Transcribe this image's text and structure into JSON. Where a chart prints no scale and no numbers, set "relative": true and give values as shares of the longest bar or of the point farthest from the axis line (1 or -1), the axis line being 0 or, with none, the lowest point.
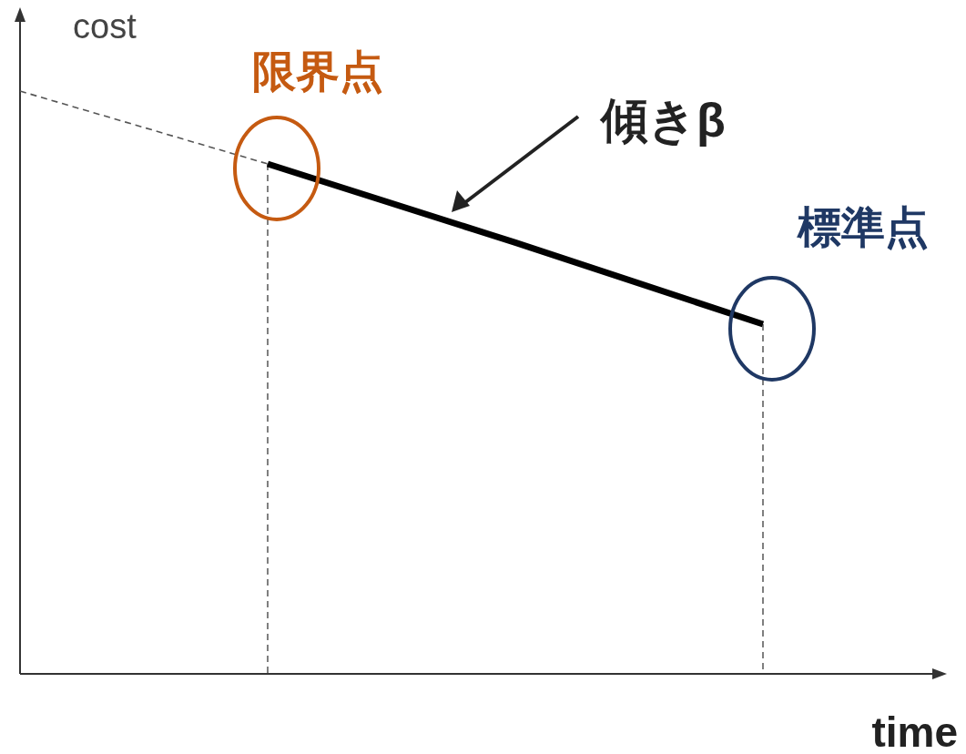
{
  "chart_data": {
    "type": "line",
    "relative": true,
    "xlabel": "time",
    "ylabel": "cost",
    "categories": [
      null,
      null,
      null,
      null
    ],
    "series": [
      {
        "color": "#555555",
        "line_style": "dashed",
        "values": [
          1,
          0.875,
          null,
          null
        ]
      },
      {
        "color": "#000000",
        "line_style": "solid",
        "values": [
          null,
          0.875,
          0.74,
          0.6
        ]
      }
    ],
    "annotations": [
      "限界点",
      "傾きβ",
      "標準点"
    ]
  }
}
